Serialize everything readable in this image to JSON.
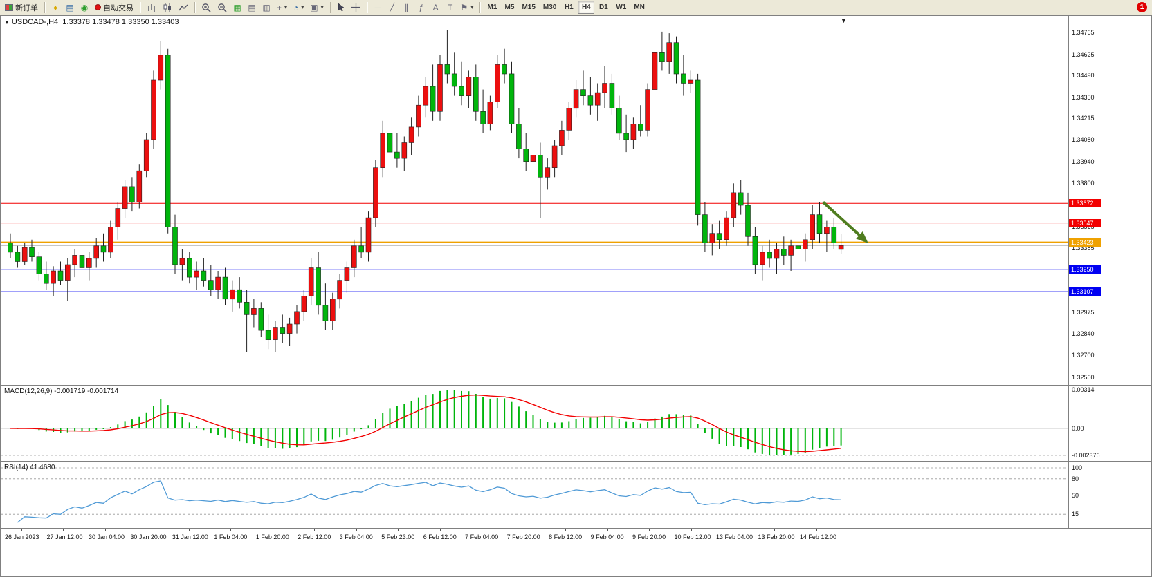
{
  "toolbar": {
    "new_order_label": "新订单",
    "auto_trading_label": "自动交易",
    "text_tool_label": "A",
    "label_tool_label": "T",
    "fibo_tool_label": "ƒ",
    "timeframes": [
      "M1",
      "M5",
      "M15",
      "M30",
      "H1",
      "H4",
      "D1",
      "W1",
      "MN"
    ],
    "active_timeframe": "H4",
    "notification_badge": "1"
  },
  "chart": {
    "symbol_label": "USDCAD-,H4",
    "ohlc_text": "1.33378 1.33478 1.33350 1.33403"
  },
  "macd": {
    "label": "MACD(12,26,9) -0.001719 -0.001714",
    "value": -0.001719,
    "signal_value": -0.001714,
    "axis_labels": [
      "0.00314",
      "0.00",
      "-0.002376"
    ]
  },
  "rsi": {
    "label": "RSI(14) 41.4680",
    "value": 41.468,
    "levels": [
      100,
      80,
      50,
      15
    ]
  },
  "chart_data": {
    "type": "candlestick",
    "symbol": "USDCAD",
    "period": "H4",
    "current_bar": {
      "open": 1.33378,
      "high": 1.33478,
      "low": 1.3335,
      "close": 1.33403
    },
    "price_axis_labels": [
      "1.34765",
      "1.34625",
      "1.34490",
      "1.34350",
      "1.34215",
      "1.34080",
      "1.33940",
      "1.33800",
      "1.33525",
      "1.33385",
      "1.32975",
      "1.32840",
      "1.32700",
      "1.32560"
    ],
    "hlines": [
      {
        "price": 1.33672,
        "label": "1.33672",
        "color": "#f20000",
        "width": 1
      },
      {
        "price": 1.33547,
        "label": "1.33547",
        "color": "#f20000",
        "width": 1
      },
      {
        "price": 1.33423,
        "label": "1.33423",
        "color": "#efa100",
        "width": 2
      },
      {
        "price": 1.3325,
        "label": "1.33250",
        "color": "#0000f2",
        "width": 1
      },
      {
        "price": 1.33107,
        "label": "1.33107",
        "color": "#0000f2",
        "width": 1
      }
    ],
    "bid_line": {
      "price": 1.33403,
      "color": "#b4b4b4"
    },
    "arrow": {
      "x1_bar": 113.5,
      "price1": 1.3368,
      "x2_bar": 119.5,
      "price2": 1.3343,
      "color": "#4f7d1f"
    },
    "time_labels": [
      "26 Jan 2023",
      "27 Jan 12:00",
      "30 Jan 04:00",
      "30 Jan 20:00",
      "31 Jan 12:00",
      "1 Feb 04:00",
      "1 Feb 20:00",
      "2 Feb 12:00",
      "3 Feb 04:00",
      "5 Feb 23:00",
      "6 Feb 12:00",
      "7 Feb 04:00",
      "7 Feb 20:00",
      "8 Feb 12:00",
      "9 Feb 04:00",
      "9 Feb 20:00",
      "10 Feb 12:00",
      "13 Feb 04:00",
      "13 Feb 20:00",
      "14 Feb 12:00"
    ],
    "colors": {
      "up": "#ec0f0f",
      "down": "#00b50c",
      "wick": "#222222",
      "macd_hist": "#00b50c",
      "macd_signal": "#f20000",
      "rsi_line": "#4f9ad6"
    },
    "candles": [
      [
        1.3342,
        1.3348,
        1.3332,
        1.3336
      ],
      [
        1.3336,
        1.334,
        1.3326,
        1.333
      ],
      [
        1.333,
        1.3342,
        1.3328,
        1.3339
      ],
      [
        1.3339,
        1.3344,
        1.333,
        1.3333
      ],
      [
        1.3333,
        1.3336,
        1.3318,
        1.3322
      ],
      [
        1.3322,
        1.333,
        1.3312,
        1.3316
      ],
      [
        1.3316,
        1.3327,
        1.3308,
        1.3324
      ],
      [
        1.3324,
        1.333,
        1.3315,
        1.3318
      ],
      [
        1.3318,
        1.3332,
        1.3305,
        1.3328
      ],
      [
        1.3328,
        1.3338,
        1.332,
        1.3334
      ],
      [
        1.3334,
        1.334,
        1.3322,
        1.3326
      ],
      [
        1.3326,
        1.3336,
        1.3318,
        1.3332
      ],
      [
        1.3332,
        1.3345,
        1.3326,
        1.334
      ],
      [
        1.334,
        1.3348,
        1.333,
        1.3336
      ],
      [
        1.3336,
        1.3356,
        1.3332,
        1.3352
      ],
      [
        1.3352,
        1.3368,
        1.3344,
        1.3364
      ],
      [
        1.3364,
        1.3382,
        1.3358,
        1.3378
      ],
      [
        1.3378,
        1.3384,
        1.3362,
        1.3368
      ],
      [
        1.3368,
        1.3392,
        1.3364,
        1.3388
      ],
      [
        1.3388,
        1.3412,
        1.3384,
        1.3408
      ],
      [
        1.3408,
        1.3452,
        1.3402,
        1.3446
      ],
      [
        1.3446,
        1.3471,
        1.344,
        1.3462
      ],
      [
        1.3462,
        1.3466,
        1.3348,
        1.3352
      ],
      [
        1.3352,
        1.336,
        1.3322,
        1.3328
      ],
      [
        1.3328,
        1.3338,
        1.3318,
        1.3332
      ],
      [
        1.3332,
        1.3336,
        1.3316,
        1.332
      ],
      [
        1.332,
        1.333,
        1.3312,
        1.3324
      ],
      [
        1.3324,
        1.3332,
        1.3314,
        1.3318
      ],
      [
        1.3318,
        1.3328,
        1.3308,
        1.3312
      ],
      [
        1.3312,
        1.3324,
        1.3306,
        1.332
      ],
      [
        1.332,
        1.3326,
        1.3302,
        1.3306
      ],
      [
        1.3306,
        1.3318,
        1.3298,
        1.3312
      ],
      [
        1.3312,
        1.332,
        1.33,
        1.3304
      ],
      [
        1.3304,
        1.3312,
        1.3272,
        1.3296
      ],
      [
        1.3296,
        1.3306,
        1.3288,
        1.33
      ],
      [
        1.33,
        1.3304,
        1.3282,
        1.3286
      ],
      [
        1.3286,
        1.3296,
        1.3274,
        1.328
      ],
      [
        1.328,
        1.3292,
        1.3272,
        1.3288
      ],
      [
        1.3288,
        1.3296,
        1.3278,
        1.3284
      ],
      [
        1.3284,
        1.3294,
        1.3276,
        1.329
      ],
      [
        1.329,
        1.3302,
        1.3284,
        1.3298
      ],
      [
        1.3298,
        1.3312,
        1.3292,
        1.3308
      ],
      [
        1.3308,
        1.3332,
        1.3302,
        1.3326
      ],
      [
        1.3326,
        1.3336,
        1.3296,
        1.3302
      ],
      [
        1.3302,
        1.3316,
        1.3286,
        1.3292
      ],
      [
        1.3292,
        1.331,
        1.3286,
        1.3306
      ],
      [
        1.3306,
        1.3322,
        1.33,
        1.3318
      ],
      [
        1.3318,
        1.333,
        1.331,
        1.3326
      ],
      [
        1.3326,
        1.3344,
        1.332,
        1.334
      ],
      [
        1.334,
        1.3352,
        1.3332,
        1.3336
      ],
      [
        1.3336,
        1.3362,
        1.333,
        1.3358
      ],
      [
        1.3358,
        1.3395,
        1.3352,
        1.339
      ],
      [
        1.339,
        1.342,
        1.3384,
        1.3412
      ],
      [
        1.3412,
        1.3418,
        1.3394,
        1.34
      ],
      [
        1.34,
        1.3412,
        1.339,
        1.3396
      ],
      [
        1.3396,
        1.341,
        1.3388,
        1.3406
      ],
      [
        1.3406,
        1.3422,
        1.3398,
        1.3416
      ],
      [
        1.3416,
        1.3436,
        1.341,
        1.343
      ],
      [
        1.343,
        1.3448,
        1.3422,
        1.3442
      ],
      [
        1.3442,
        1.3456,
        1.342,
        1.3426
      ],
      [
        1.3426,
        1.3462,
        1.342,
        1.3456
      ],
      [
        1.3456,
        1.3478,
        1.3444,
        1.345
      ],
      [
        1.345,
        1.3464,
        1.3436,
        1.3442
      ],
      [
        1.3442,
        1.3458,
        1.343,
        1.3436
      ],
      [
        1.3436,
        1.3452,
        1.3428,
        1.3448
      ],
      [
        1.3448,
        1.3456,
        1.342,
        1.3426
      ],
      [
        1.3426,
        1.344,
        1.3412,
        1.3418
      ],
      [
        1.3418,
        1.3436,
        1.3414,
        1.3432
      ],
      [
        1.3432,
        1.3462,
        1.3428,
        1.3456
      ],
      [
        1.3456,
        1.3466,
        1.3444,
        1.345
      ],
      [
        1.345,
        1.3458,
        1.3412,
        1.3418
      ],
      [
        1.3418,
        1.3428,
        1.3396,
        1.3402
      ],
      [
        1.3402,
        1.3412,
        1.3388,
        1.3394
      ],
      [
        1.3394,
        1.3404,
        1.338,
        1.3398
      ],
      [
        1.3398,
        1.3406,
        1.3358,
        1.3384
      ],
      [
        1.3384,
        1.3396,
        1.3376,
        1.339
      ],
      [
        1.339,
        1.3408,
        1.3384,
        1.3404
      ],
      [
        1.3404,
        1.342,
        1.3398,
        1.3414
      ],
      [
        1.3414,
        1.3432,
        1.3408,
        1.3428
      ],
      [
        1.3428,
        1.3446,
        1.3422,
        1.344
      ],
      [
        1.344,
        1.3452,
        1.343,
        1.3436
      ],
      [
        1.3436,
        1.3448,
        1.3424,
        1.343
      ],
      [
        1.343,
        1.3444,
        1.342,
        1.3438
      ],
      [
        1.3438,
        1.3455,
        1.3428,
        1.3444
      ],
      [
        1.3444,
        1.345,
        1.3424,
        1.3428
      ],
      [
        1.3428,
        1.3436,
        1.3408,
        1.3412
      ],
      [
        1.3412,
        1.3424,
        1.34,
        1.3408
      ],
      [
        1.3408,
        1.3422,
        1.3402,
        1.3418
      ],
      [
        1.3418,
        1.343,
        1.341,
        1.3414
      ],
      [
        1.3414,
        1.3444,
        1.341,
        1.344
      ],
      [
        1.344,
        1.347,
        1.3434,
        1.3464
      ],
      [
        1.3464,
        1.3477,
        1.3452,
        1.3458
      ],
      [
        1.3458,
        1.3476,
        1.345,
        1.347
      ],
      [
        1.347,
        1.3474,
        1.3444,
        1.345
      ],
      [
        1.345,
        1.3462,
        1.3436,
        1.3444
      ],
      [
        1.3444,
        1.3452,
        1.3438,
        1.3446
      ],
      [
        1.3446,
        1.345,
        1.3353,
        1.336
      ],
      [
        1.336,
        1.3368,
        1.3336,
        1.3342
      ],
      [
        1.3342,
        1.3354,
        1.3334,
        1.3348
      ],
      [
        1.3348,
        1.3356,
        1.3338,
        1.3344
      ],
      [
        1.3344,
        1.3362,
        1.334,
        1.3358
      ],
      [
        1.3358,
        1.338,
        1.3352,
        1.3374
      ],
      [
        1.3374,
        1.3382,
        1.336,
        1.3366
      ],
      [
        1.3366,
        1.3374,
        1.334,
        1.3346
      ],
      [
        1.3346,
        1.3352,
        1.3322,
        1.3328
      ],
      [
        1.3328,
        1.334,
        1.3318,
        1.3336
      ],
      [
        1.3336,
        1.3344,
        1.3326,
        1.3332
      ],
      [
        1.3332,
        1.3342,
        1.3322,
        1.3338
      ],
      [
        1.3338,
        1.3346,
        1.3328,
        1.3334
      ],
      [
        1.3334,
        1.3344,
        1.3324,
        1.334
      ],
      [
        1.334,
        1.3393,
        1.3272,
        1.3338
      ],
      [
        1.3338,
        1.3348,
        1.333,
        1.3344
      ],
      [
        1.3344,
        1.3366,
        1.3338,
        1.336
      ],
      [
        1.336,
        1.3368,
        1.3342,
        1.3348
      ],
      [
        1.3348,
        1.3356,
        1.3336,
        1.3352
      ],
      [
        1.3352,
        1.3358,
        1.3338,
        1.3342
      ],
      [
        1.33378,
        1.33478,
        1.3335,
        1.33403
      ]
    ]
  }
}
